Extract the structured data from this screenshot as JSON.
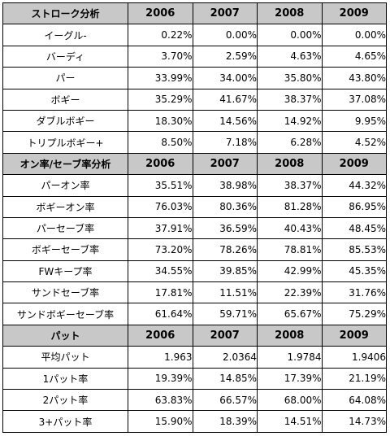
{
  "sections": [
    {
      "header": "ストローク分析",
      "years": [
        "2006",
        "2007",
        "2008",
        "2009"
      ],
      "rows": [
        {
          "label": "イーグル-",
          "values": [
            "0.22%",
            "0.00%",
            "0.00%",
            "0.00%"
          ]
        },
        {
          "label": "バーディ",
          "values": [
            "3.70%",
            "2.59%",
            "4.63%",
            "4.65%"
          ]
        },
        {
          "label": "パー",
          "values": [
            "33.99%",
            "34.00%",
            "35.80%",
            "43.80%"
          ]
        },
        {
          "label": "ボギー",
          "values": [
            "35.29%",
            "41.67%",
            "38.37%",
            "37.08%"
          ]
        },
        {
          "label": "ダブルボギー",
          "values": [
            "18.30%",
            "14.56%",
            "14.92%",
            "9.95%"
          ]
        },
        {
          "label": "トリプルボギー+",
          "values": [
            "8.50%",
            "7.18%",
            "6.28%",
            "4.52%"
          ]
        }
      ]
    },
    {
      "header": "オン率/セーブ率分析",
      "years": [
        "2006",
        "2007",
        "2008",
        "2009"
      ],
      "rows": [
        {
          "label": "パーオン率",
          "values": [
            "35.51%",
            "38.98%",
            "38.37%",
            "44.32%"
          ]
        },
        {
          "label": "ボギーオン率",
          "values": [
            "76.03%",
            "80.36%",
            "81.28%",
            "86.95%"
          ]
        },
        {
          "label": "パーセーブ率",
          "values": [
            "37.91%",
            "36.59%",
            "40.43%",
            "48.45%"
          ]
        },
        {
          "label": "ボギーセーブ率",
          "values": [
            "73.20%",
            "78.26%",
            "78.81%",
            "85.53%"
          ]
        },
        {
          "label": "FWキープ率",
          "values": [
            "34.55%",
            "39.85%",
            "42.99%",
            "45.35%"
          ]
        },
        {
          "label": "サンドセーブ率",
          "values": [
            "17.81%",
            "11.51%",
            "22.39%",
            "31.76%"
          ]
        },
        {
          "label": "サンドボギーセーブ率",
          "values": [
            "61.64%",
            "59.71%",
            "65.67%",
            "75.29%"
          ]
        }
      ]
    },
    {
      "header": "パット",
      "years": [
        "2006",
        "2007",
        "2008",
        "2009"
      ],
      "rows": [
        {
          "label": "平均パット",
          "values": [
            "1.963",
            "2.0364",
            "1.9784",
            "1.9406"
          ]
        },
        {
          "label": "1パット率",
          "values": [
            "19.39%",
            "14.85%",
            "17.39%",
            "21.19%"
          ]
        },
        {
          "label": "2パット率",
          "values": [
            "63.83%",
            "66.57%",
            "68.00%",
            "64.08%"
          ]
        },
        {
          "label": "3+パット率",
          "values": [
            "15.90%",
            "18.39%",
            "14.51%",
            "14.73%"
          ]
        }
      ]
    }
  ]
}
